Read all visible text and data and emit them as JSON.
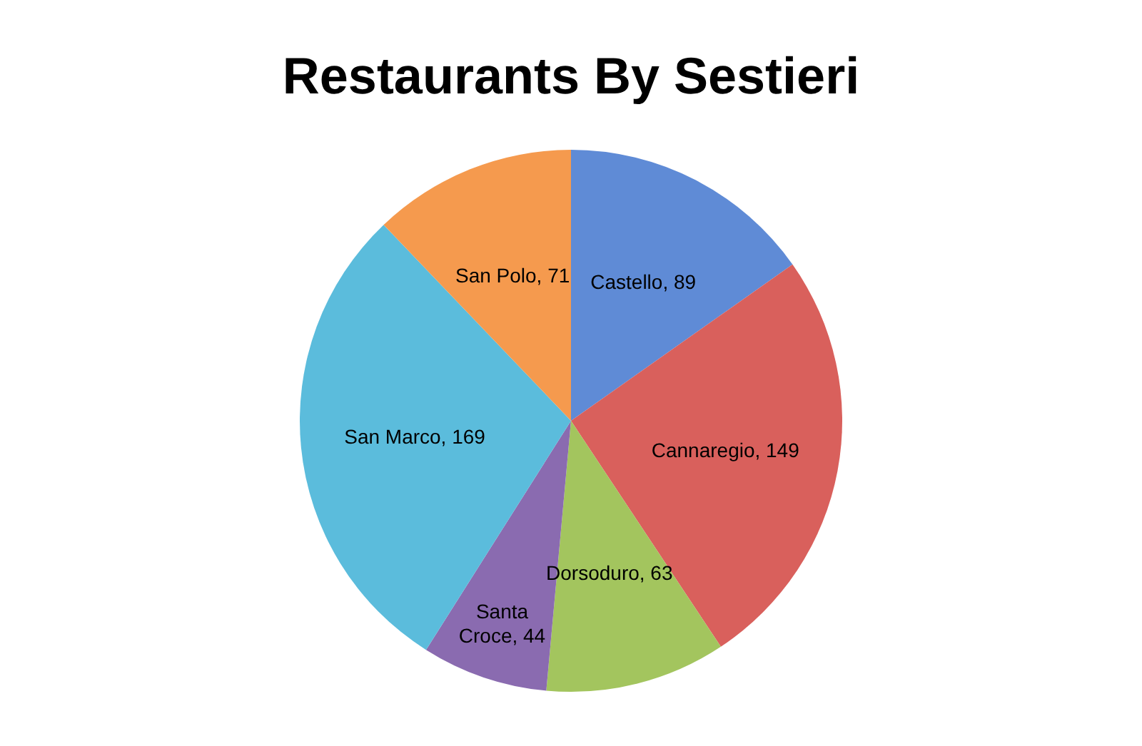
{
  "chart_data": {
    "type": "pie",
    "title": "Restaurants By Sestieri",
    "categories": [
      "Castello",
      "Cannaregio",
      "Dorsoduro",
      "Santa Croce",
      "San Marco",
      "San Polo"
    ],
    "values": [
      89,
      149,
      63,
      44,
      169,
      71
    ],
    "colors": [
      "#5f8bd6",
      "#d9605c",
      "#a3c55e",
      "#8a6bb0",
      "#5bbcdc",
      "#f59a4e"
    ],
    "value_labels": [
      ", 89",
      ", 149",
      ", 63",
      ", 44",
      ", 169",
      ", 71"
    ],
    "legend": false
  }
}
